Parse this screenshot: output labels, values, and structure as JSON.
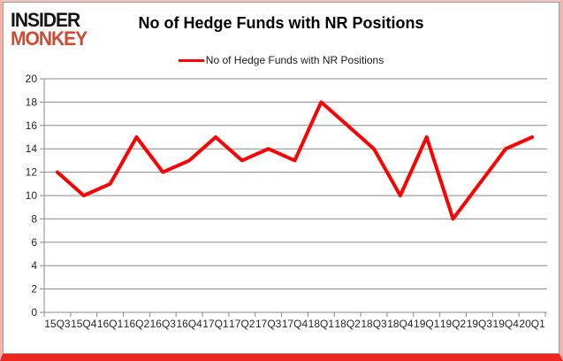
{
  "logo": {
    "line1": "INSIDER",
    "line2": "MONKEY"
  },
  "header": {
    "title": "No of Hedge Funds with NR Positions"
  },
  "legend": {
    "label": "No of Hedge Funds with NR Positions"
  },
  "colors": {
    "series_line": "#ff0000",
    "grid": "#898989",
    "axis": "#898989",
    "axis_text": "#262626",
    "logo_black": "#141414",
    "logo_red": "#d3492f",
    "frame_bottom_red": "#ee2620"
  },
  "chart_data": {
    "type": "line",
    "title": "No of Hedge Funds with NR Positions",
    "series_name": "No of Hedge Funds with NR Positions",
    "categories": [
      "15Q3",
      "15Q4",
      "16Q1",
      "16Q2",
      "16Q3",
      "16Q4",
      "17Q1",
      "17Q2",
      "17Q3",
      "17Q4",
      "18Q1",
      "18Q2",
      "18Q3",
      "18Q4",
      "19Q1",
      "19Q2",
      "19Q3",
      "19Q4",
      "20Q1"
    ],
    "values": [
      12,
      10,
      11,
      15,
      12,
      13,
      15,
      13,
      14,
      13,
      18,
      16,
      14,
      10,
      15,
      8,
      11,
      14,
      15
    ],
    "xlabel": "",
    "ylabel": "",
    "ylim": [
      0,
      20
    ],
    "ytick_step": 2,
    "grid": true,
    "legend_position": "top-center",
    "line_color": "#ff0000"
  }
}
